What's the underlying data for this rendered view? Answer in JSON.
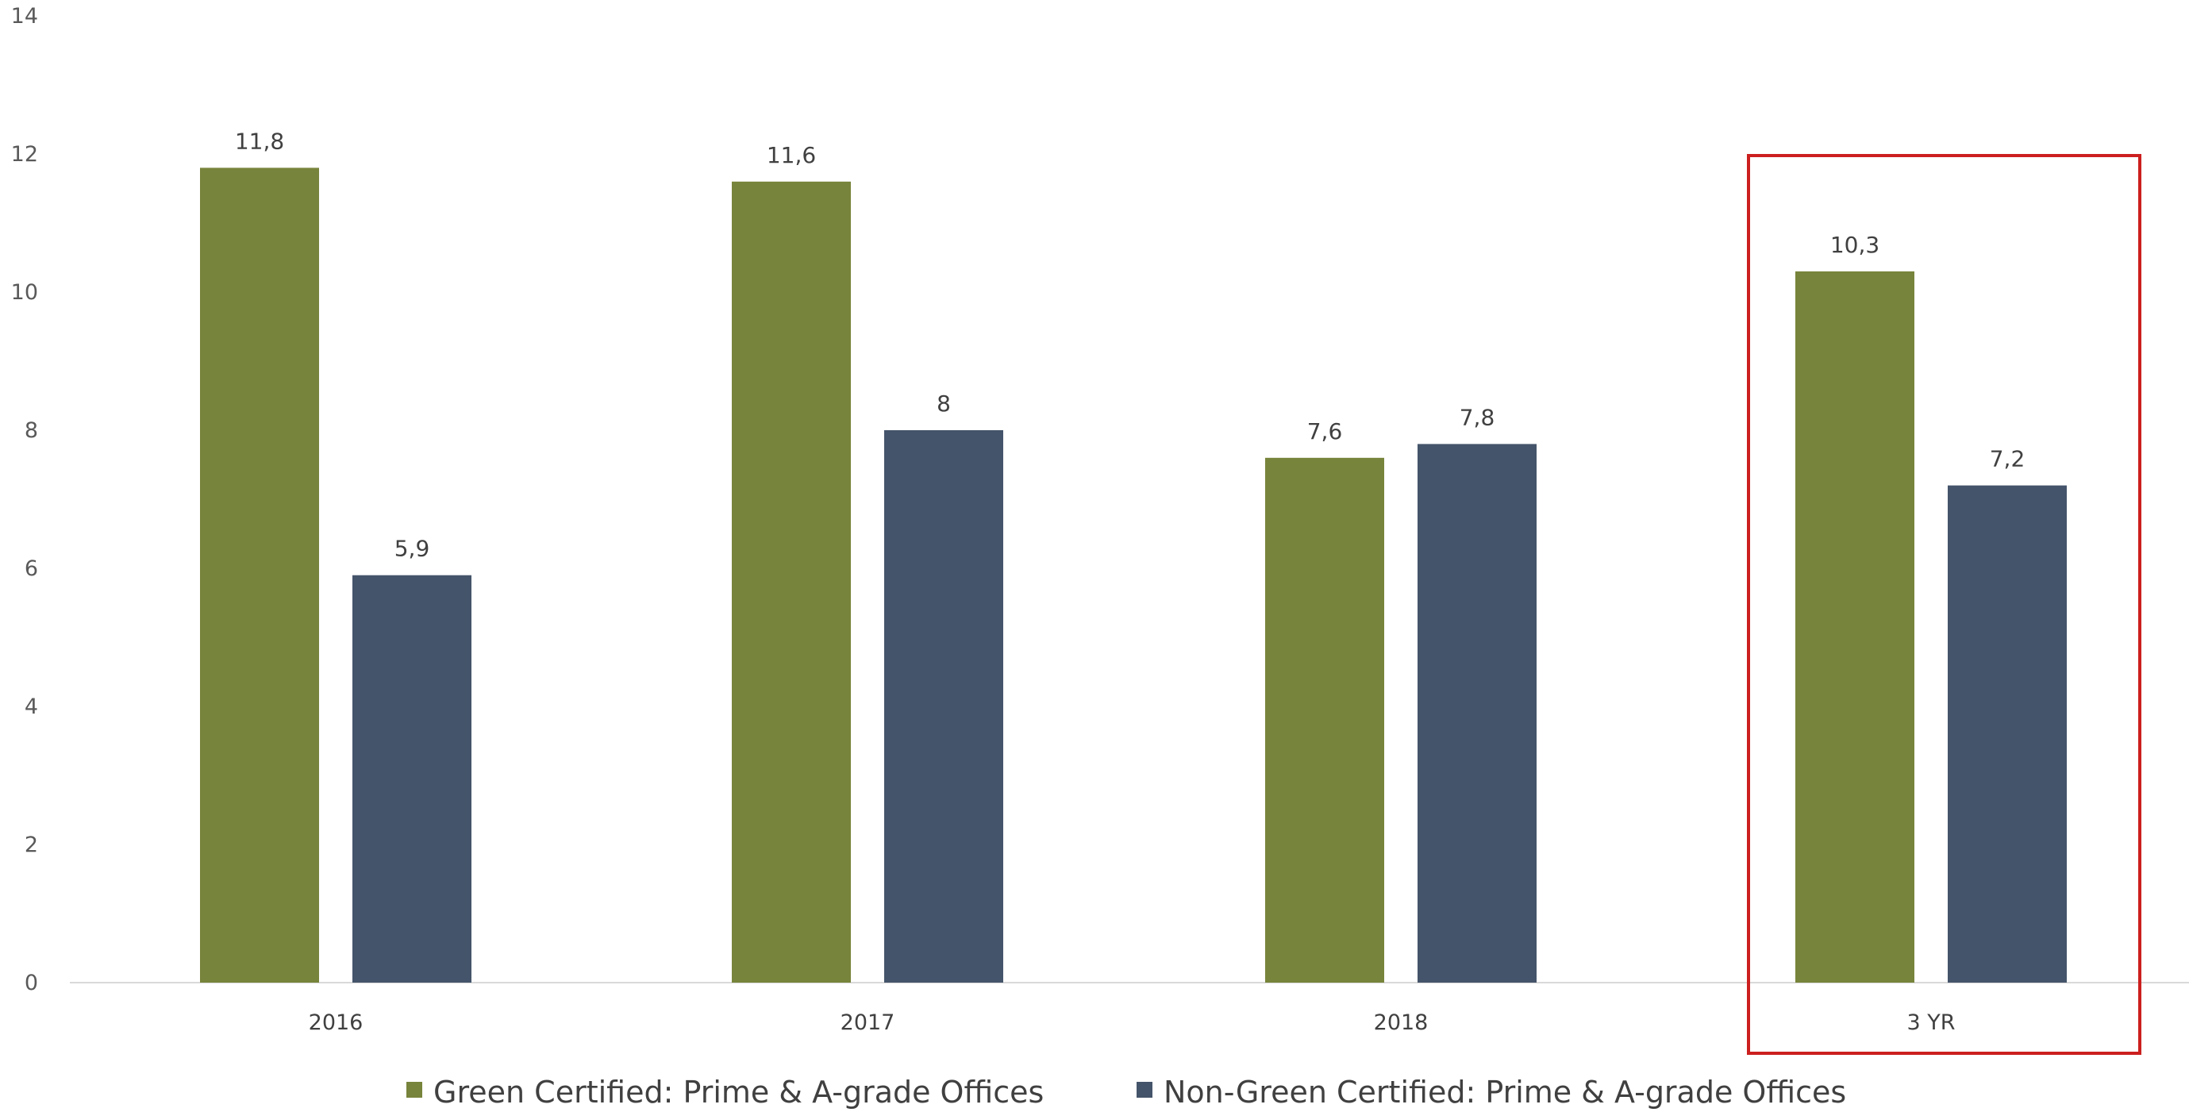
{
  "chart_data": {
    "type": "bar",
    "categories": [
      "2016",
      "2017",
      "2018",
      "3 YR"
    ],
    "series": [
      {
        "name": "Green Certified: Prime & A-grade Offices",
        "values": [
          11.8,
          11.6,
          7.6,
          10.3
        ],
        "labels": [
          "11,8",
          "11,6",
          "7,6",
          "10,3"
        ],
        "color": "#77843b"
      },
      {
        "name": "Non-Green Certified: Prime & A-grade Offices",
        "values": [
          5.9,
          8,
          7.8,
          7.2
        ],
        "labels": [
          "5,9",
          "8",
          "7,8",
          "7,2"
        ],
        "color": "#44546a"
      }
    ],
    "ylim": [
      0,
      14
    ],
    "yticks": [
      "0",
      "2",
      "4",
      "6",
      "8",
      "10",
      "12",
      "14"
    ],
    "grid": false,
    "legend": "bottom",
    "highlight": {
      "category": "3 YR",
      "color": "#cc1f1f"
    }
  }
}
